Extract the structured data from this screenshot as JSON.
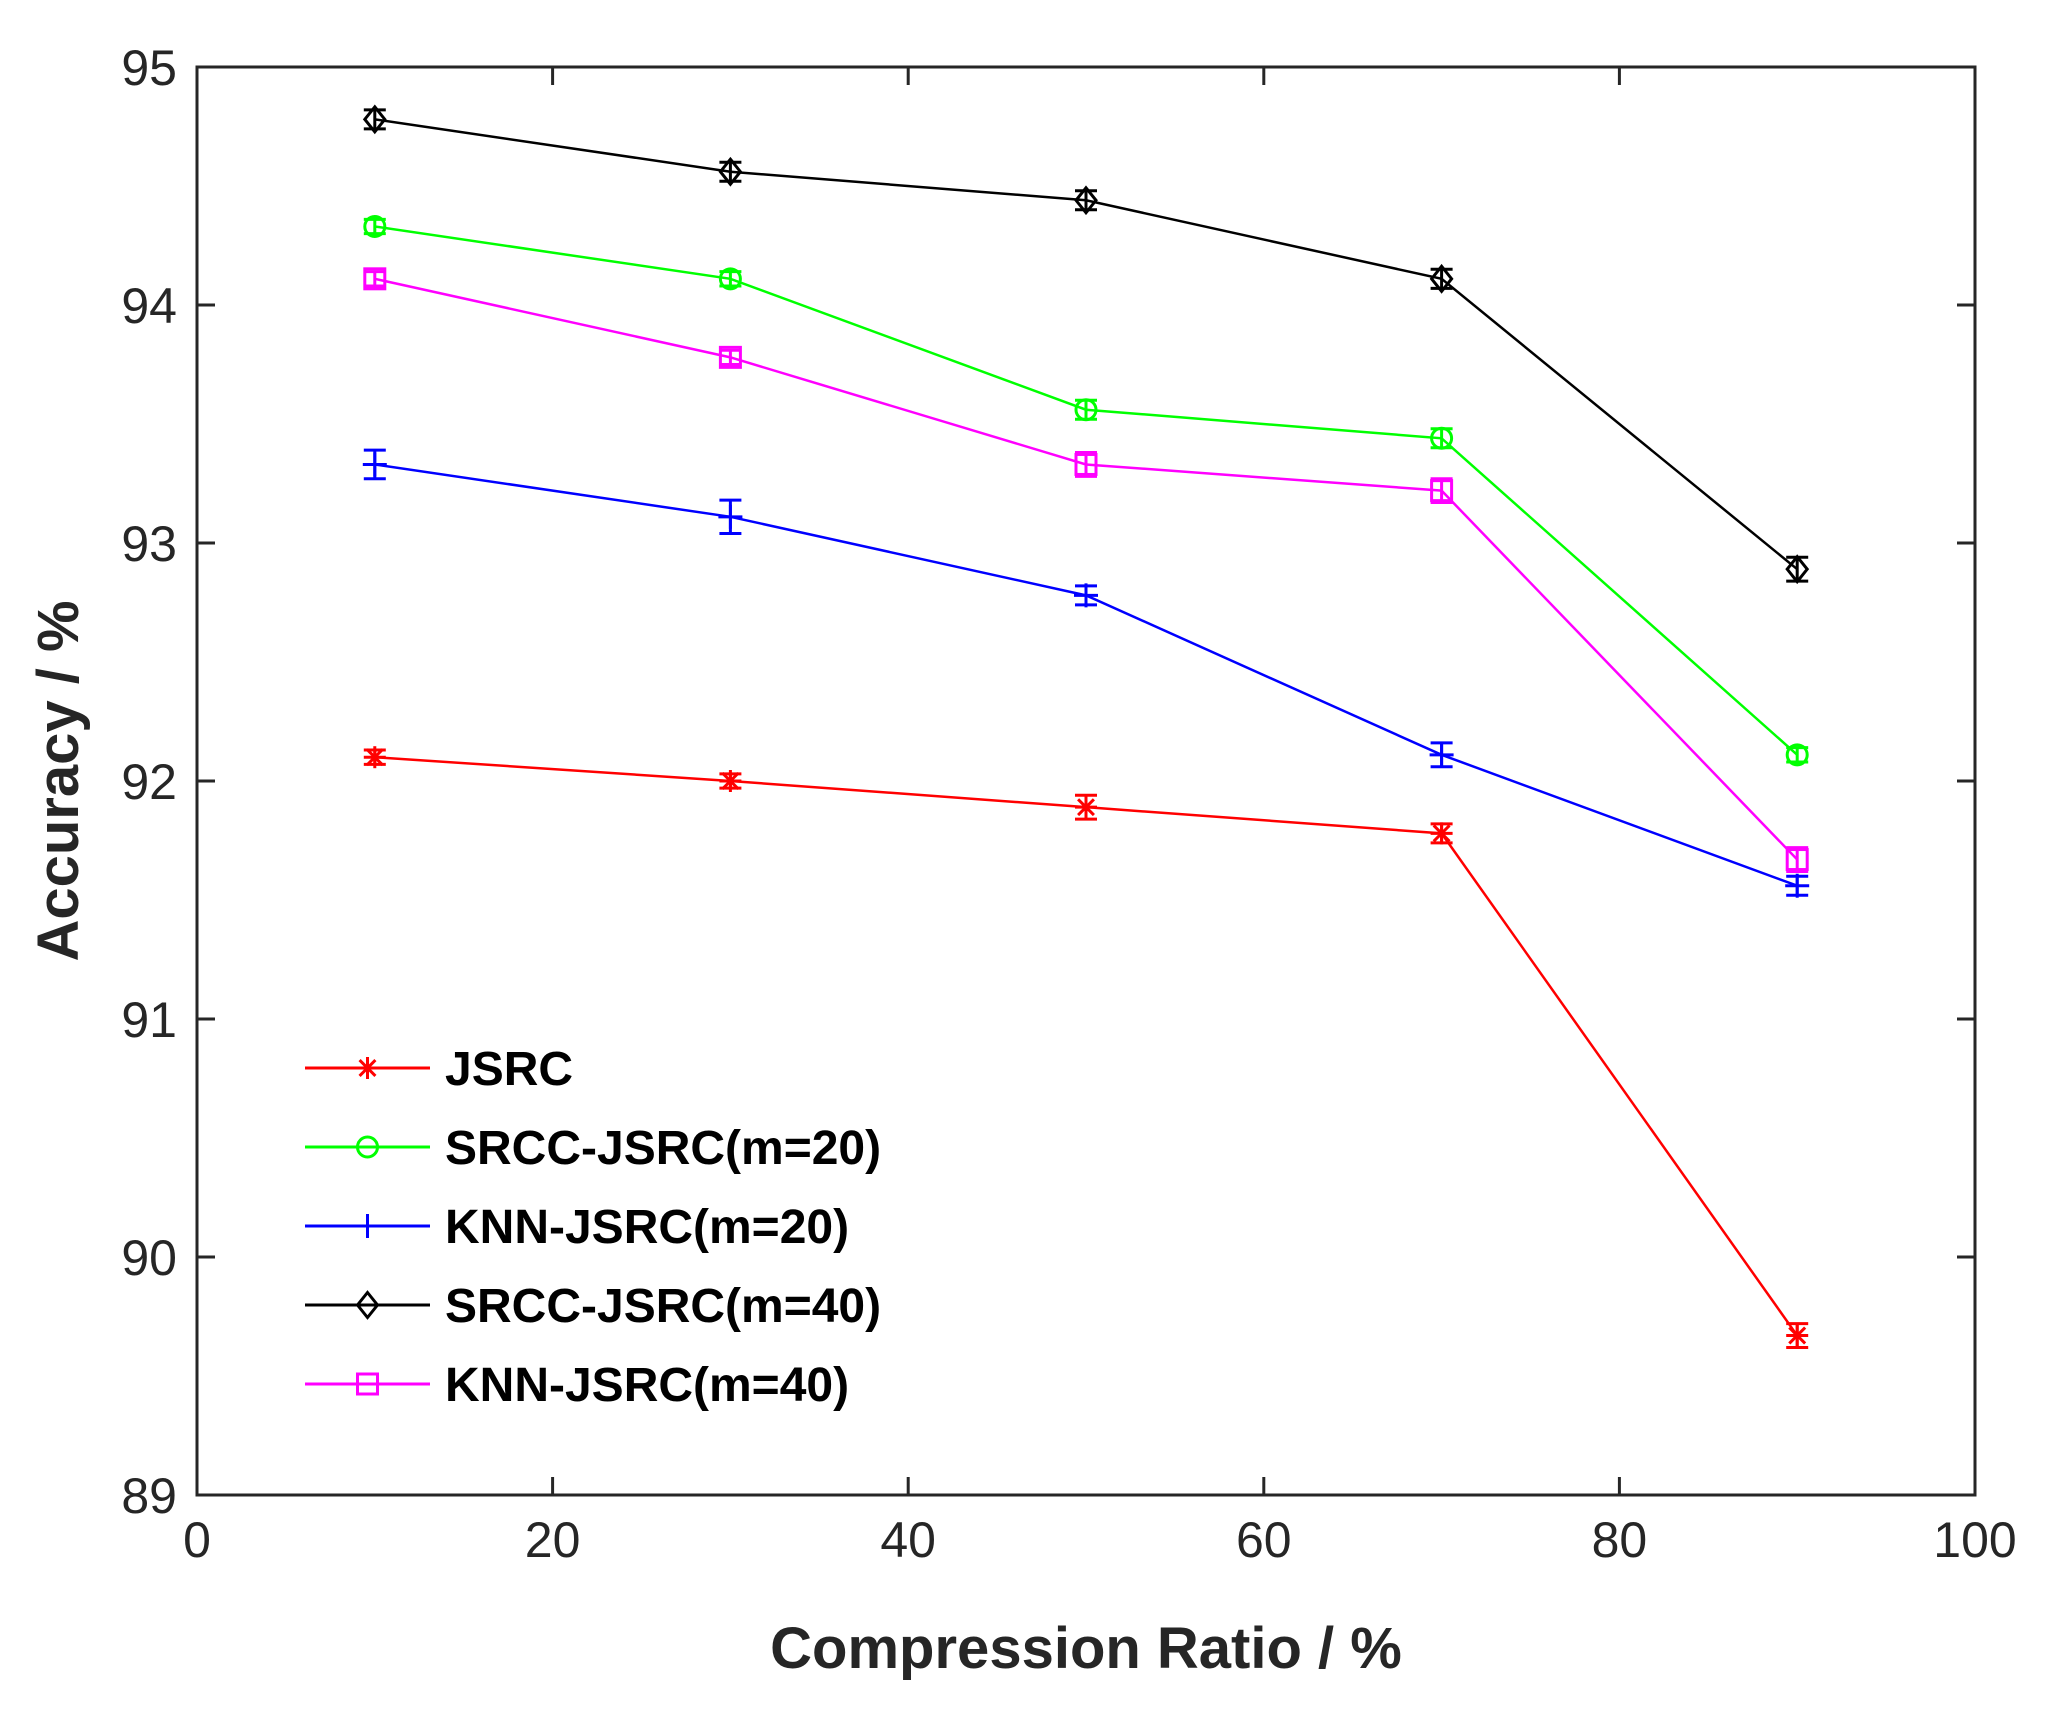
{
  "chart_data": {
    "type": "line",
    "title": "",
    "xlabel": "Compression Ratio / %",
    "ylabel": "Accuracy / %",
    "xlim": [
      0,
      100
    ],
    "ylim": [
      89,
      95
    ],
    "xticks": [
      "0",
      "20",
      "40",
      "60",
      "80",
      "100"
    ],
    "yticks": [
      "89",
      "90",
      "91",
      "92",
      "93",
      "94",
      "95"
    ],
    "x": [
      10,
      30,
      50,
      70,
      90
    ],
    "legend_position": "bottom-left",
    "series": [
      {
        "name": "JSRC",
        "color": "#ff0000",
        "marker": "asterisk",
        "values": [
          92.1,
          92.0,
          91.89,
          91.78,
          89.67
        ],
        "errors": [
          0.03,
          0.03,
          0.05,
          0.04,
          0.05
        ]
      },
      {
        "name": "SRCC-JSRC(m=20)",
        "color": "#00ff00",
        "marker": "circle",
        "values": [
          94.33,
          94.11,
          93.56,
          93.44,
          92.11
        ],
        "errors": [
          0.03,
          0.03,
          0.04,
          0.04,
          0.03
        ]
      },
      {
        "name": "KNN-JSRC(m=20)",
        "color": "#0000ff",
        "marker": "plus",
        "values": [
          93.33,
          93.11,
          92.78,
          92.11,
          91.56
        ],
        "errors": [
          0.06,
          0.07,
          0.04,
          0.05,
          0.04
        ]
      },
      {
        "name": "SRCC-JSRC(m=40)",
        "color": "#000000",
        "marker": "diamond",
        "values": [
          94.78,
          94.56,
          94.44,
          94.11,
          92.89
        ],
        "errors": [
          0.04,
          0.04,
          0.04,
          0.04,
          0.05
        ]
      },
      {
        "name": "KNN-JSRC(m=40)",
        "color": "#ff00ff",
        "marker": "square",
        "values": [
          94.11,
          93.78,
          93.33,
          93.22,
          91.67
        ],
        "errors": [
          0.03,
          0.03,
          0.05,
          0.05,
          0.05
        ]
      }
    ]
  }
}
